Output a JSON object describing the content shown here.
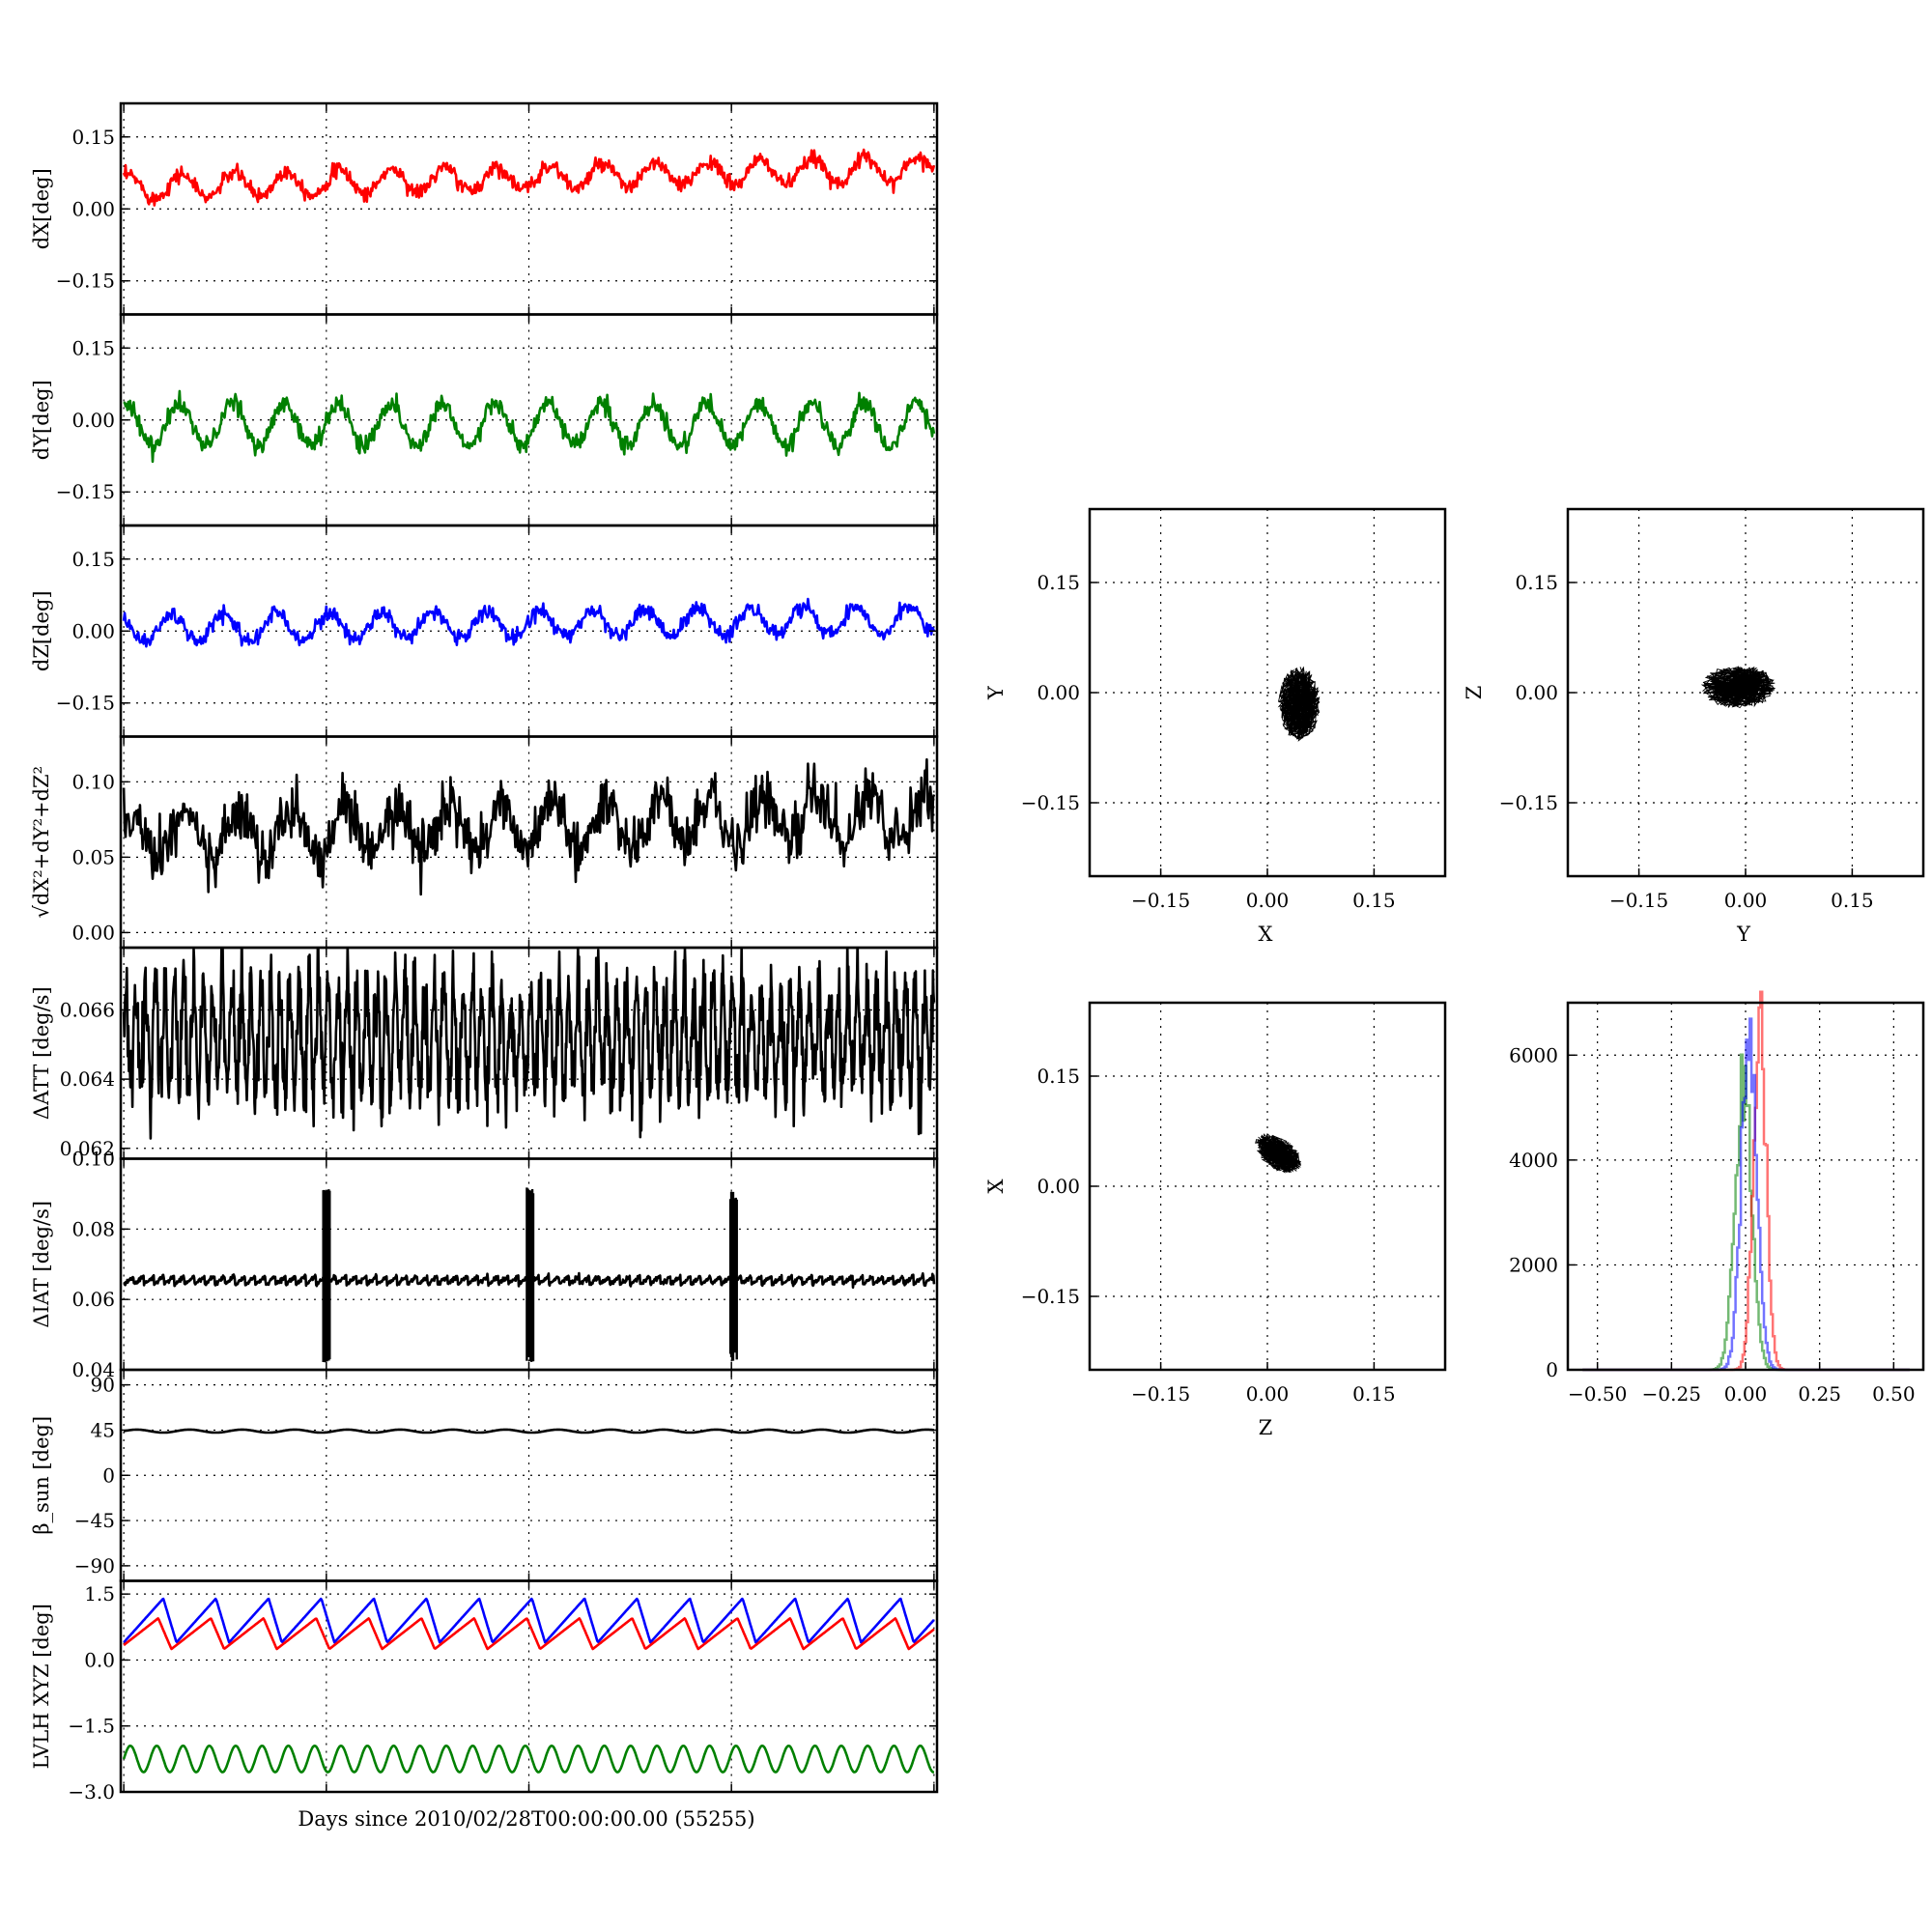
{
  "figure": {
    "xlabel": "Days since 2010/02/28T00:00:00.00 (55255)"
  },
  "chart_data": [
    {
      "type": "line",
      "ylabel": "dX[deg]",
      "yticks": [
        "0.15",
        "0.00",
        "−0.15"
      ],
      "ytick_values": [
        0.15,
        0.0,
        -0.15
      ],
      "ylim": [
        -0.22,
        0.22
      ],
      "grid": true,
      "series": [
        {
          "color": "#ff0000",
          "model": {
            "base": 0.045,
            "trend": 0.04,
            "amp": 0.025,
            "period": 5.2,
            "phase": 1.0,
            "shape": "sin",
            "noise": 0.008
          }
        }
      ]
    },
    {
      "type": "line",
      "ylabel": "dY[deg]",
      "yticks": [
        "0.15",
        "0.00",
        "−0.15"
      ],
      "ytick_values": [
        0.15,
        0.0,
        -0.15
      ],
      "ylim": [
        -0.22,
        0.22
      ],
      "grid": true,
      "series": [
        {
          "color": "#008000",
          "model": {
            "base": -0.01,
            "trend": 0.0,
            "amp": 0.045,
            "period": 5.2,
            "phase": 1.2,
            "shape": "sin",
            "noise": 0.01
          }
        }
      ]
    },
    {
      "type": "line",
      "ylabel": "dZ[deg]",
      "yticks": [
        "0.15",
        "0.00",
        "−0.15"
      ],
      "ytick_values": [
        0.15,
        0.0,
        -0.15
      ],
      "ylim": [
        -0.22,
        0.22
      ],
      "grid": true,
      "series": [
        {
          "color": "#0000ff",
          "model": {
            "base": 0.005,
            "trend": 0.02,
            "amp": 0.028,
            "period": 5.2,
            "phase": 2.2,
            "shape": "sin",
            "noise": 0.008
          }
        }
      ]
    },
    {
      "type": "line",
      "ylabel": "√dX²+dY²+dZ²",
      "yticks": [
        "0.10",
        "0.05",
        "0.00"
      ],
      "ytick_values": [
        0.1,
        0.05,
        0.0
      ],
      "ylim": [
        -0.01,
        0.13
      ],
      "grid": true,
      "series": [
        {
          "color": "#000000",
          "model": {
            "base": 0.063,
            "trend": 0.015,
            "amp": 0.015,
            "period": 5.2,
            "phase": 0.5,
            "shape": "sin",
            "noise": 0.009
          }
        }
      ]
    },
    {
      "type": "line",
      "ylabel": "ΔATT [deg/s]",
      "yticks": [
        "0.066",
        "0.064",
        "0.062"
      ],
      "ytick_values": [
        0.066,
        0.064,
        0.062
      ],
      "ylim": [
        0.0617,
        0.0678
      ],
      "grid": true,
      "series": [
        {
          "color": "#000000",
          "model": {
            "base": 0.0652,
            "trend": 0.0,
            "amp": 0.0015,
            "period": 0.95,
            "phase": 0.0,
            "shape": "sin",
            "noise": 0.0006
          }
        }
      ]
    },
    {
      "type": "line",
      "ylabel": "ΔIAT [deg/s]",
      "yticks": [
        "0.10",
        "0.08",
        "0.06",
        "0.04"
      ],
      "ytick_values": [
        0.1,
        0.08,
        0.06,
        0.04
      ],
      "ylim": [
        0.04,
        0.1
      ],
      "grid": true,
      "series": [
        {
          "color": "#000000",
          "model": {
            "base": 0.0655,
            "trend": 0.0,
            "amp": 0.0012,
            "period": 1.0,
            "phase": 0.0,
            "shape": "saw",
            "noise": 0.0003,
            "spikes": [
              {
                "x": 20.0,
                "hi": 0.092,
                "lo": 0.042
              },
              {
                "x": 40.1,
                "hi": 0.092,
                "lo": 0.042
              },
              {
                "x": 60.2,
                "hi": 0.091,
                "lo": 0.042
              }
            ]
          }
        }
      ]
    },
    {
      "type": "line",
      "ylabel": "β_sun [deg]",
      "yticks": [
        "90",
        "45",
        "0",
        "−45",
        "−90"
      ],
      "ytick_values": [
        90,
        45,
        0,
        -45,
        -90
      ],
      "ylim": [
        -105,
        105
      ],
      "grid": true,
      "series": [
        {
          "color": "#000000",
          "model": {
            "base": 44,
            "trend": 0.0,
            "amp": 1.5,
            "period": 5.2,
            "phase": 0.0,
            "shape": "sin",
            "noise": 0.0
          }
        }
      ]
    },
    {
      "type": "line",
      "ylabel": "LVLH XYZ [deg]",
      "yticks": [
        "1.5",
        "0.0",
        "−1.5",
        "−3.0"
      ],
      "ytick_values": [
        1.5,
        0.0,
        -1.5,
        -3.0
      ],
      "ylim": [
        -3.0,
        1.8
      ],
      "grid": true,
      "series": [
        {
          "color": "#0000ff",
          "model": {
            "base": 0.9,
            "trend": 0.0,
            "amp": 0.5,
            "period": 5.2,
            "phase": 0.0,
            "shape": "saw2",
            "noise": 0.0
          }
        },
        {
          "color": "#ff0000",
          "model": {
            "base": 0.6,
            "trend": 0.0,
            "amp": 0.35,
            "period": 5.2,
            "phase": 0.6,
            "shape": "saw2",
            "noise": 0.0
          }
        },
        {
          "color": "#008000",
          "model": {
            "base": -2.25,
            "trend": 0.0,
            "amp": 0.3,
            "period": 2.6,
            "phase": 0.0,
            "shape": "sin",
            "noise": 0.0
          }
        }
      ]
    },
    {
      "type": "scatter",
      "xlabel": "X",
      "ylabel": "Y",
      "xlim": [
        -0.25,
        0.25
      ],
      "ylim": [
        -0.25,
        0.25
      ],
      "xticks": [
        "−0.15",
        "0.00",
        "0.15"
      ],
      "yticks": [
        "0.15",
        "0.00",
        "−0.15"
      ],
      "tick_values": [
        -0.15,
        0.0,
        0.15
      ],
      "grid": true,
      "cloud": {
        "cx": 0.045,
        "cy": -0.015,
        "rx": 0.028,
        "ry": 0.048,
        "n": 400
      }
    },
    {
      "type": "scatter",
      "xlabel": "Y",
      "ylabel": "Z",
      "xlim": [
        -0.25,
        0.25
      ],
      "ylim": [
        -0.25,
        0.25
      ],
      "xticks": [
        "−0.15",
        "0.00",
        "0.15"
      ],
      "yticks": [
        "0.15",
        "0.00",
        "−0.15"
      ],
      "tick_values": [
        -0.15,
        0.0,
        0.15
      ],
      "grid": true,
      "cloud": {
        "cx": -0.01,
        "cy": 0.008,
        "rx": 0.05,
        "ry": 0.028,
        "n": 400
      }
    },
    {
      "type": "scatter",
      "xlabel": "Z",
      "ylabel": "X",
      "xlim": [
        -0.25,
        0.25
      ],
      "ylim": [
        -0.25,
        0.25
      ],
      "xticks": [
        "−0.15",
        "0.00",
        "0.15"
      ],
      "yticks": [
        "0.15",
        "0.00",
        "−0.15"
      ],
      "tick_values": [
        -0.15,
        0.0,
        0.15
      ],
      "grid": true,
      "cloud": {
        "cx": 0.015,
        "cy": 0.045,
        "rx": 0.035,
        "ry": 0.02,
        "rot": -0.6,
        "n": 350
      }
    },
    {
      "type": "histogram",
      "xlim": [
        -0.6,
        0.6
      ],
      "ylim": [
        0,
        7000
      ],
      "xticks": [
        "−0.50",
        "−0.25",
        "0.00",
        "0.25",
        "0.50"
      ],
      "xtick_values": [
        -0.5,
        -0.25,
        0.0,
        0.25,
        0.5
      ],
      "yticks": [
        "6000",
        "4000",
        "2000",
        "0"
      ],
      "ytick_values": [
        6000,
        4000,
        2000,
        0
      ],
      "grid": true,
      "series": [
        {
          "color": "#008000",
          "opacity": 0.55,
          "mean": -0.01,
          "sd": 0.028,
          "peak": 5500
        },
        {
          "color": "#ff0000",
          "opacity": 0.55,
          "mean": 0.045,
          "sd": 0.022,
          "peak": 6500
        },
        {
          "color": "#0000ff",
          "opacity": 0.55,
          "mean": 0.01,
          "sd": 0.026,
          "peak": 6700
        }
      ]
    }
  ]
}
